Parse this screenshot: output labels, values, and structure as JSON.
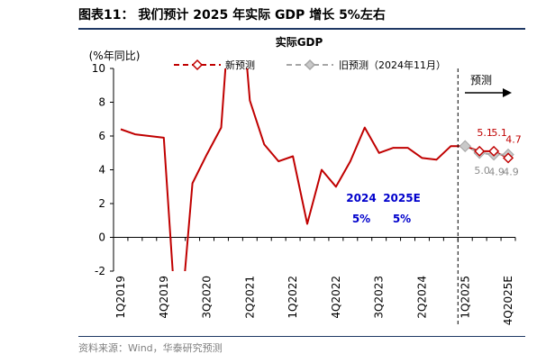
{
  "figure_title": "图表11：  我们预计 2025 年实际 GDP 增长 5%左右",
  "source": "资料来源：Wind，华泰研究预测",
  "chart_data": {
    "type": "line",
    "title": "实际GDP",
    "ylabel": "(%年同比)",
    "ylim": [
      -2,
      10
    ],
    "yticks": [
      -2,
      0,
      2,
      4,
      6,
      8,
      10
    ],
    "x_tick_labels": [
      "1Q2019",
      "4Q2019",
      "3Q2020",
      "2Q2021",
      "1Q2022",
      "4Q2022",
      "3Q2023",
      "2Q2024",
      "1Q2025",
      "4Q2025E"
    ],
    "grid": false,
    "legend_position": "top",
    "series": [
      {
        "name": "新预测",
        "color": "#c00000",
        "x": [
          "1Q2019",
          "2Q2019",
          "3Q2019",
          "4Q2019",
          "1Q2020",
          "2Q2020",
          "3Q2020",
          "4Q2020",
          "1Q2021",
          "2Q2021",
          "3Q2021",
          "4Q2021",
          "1Q2022",
          "2Q2022",
          "3Q2022",
          "4Q2022",
          "1Q2023",
          "2Q2023",
          "3Q2023",
          "4Q2023",
          "1Q2024",
          "2Q2024",
          "3Q2024",
          "4Q2024",
          "1Q2025",
          "2Q2025E",
          "3Q2025E",
          "4Q2025E"
        ],
        "values": [
          6.4,
          6.1,
          6.0,
          5.9,
          -6.8,
          3.2,
          4.9,
          6.5,
          18.3,
          8.1,
          5.5,
          4.5,
          4.8,
          0.8,
          4.0,
          3.0,
          4.5,
          6.5,
          5.0,
          5.3,
          5.3,
          4.7,
          4.6,
          5.4,
          5.4,
          5.1,
          5.1,
          4.7
        ]
      },
      {
        "name": "旧预测（2024年11月）",
        "color": "#a6a6a6",
        "x": [
          "1Q2025",
          "2Q2025E",
          "3Q2025E",
          "4Q2025E"
        ],
        "values": [
          5.4,
          5.0,
          4.9,
          4.9
        ]
      }
    ],
    "forecast_divider": {
      "after": "4Q2024",
      "label": "预测"
    },
    "data_labels": {
      "new": [
        {
          "x": "2Q2025E",
          "text": "5.1"
        },
        {
          "x": "3Q2025E",
          "text": "5.1"
        },
        {
          "x": "4Q2025E",
          "text": "4.7"
        }
      ],
      "old": [
        {
          "x": "2Q2025E",
          "text": "5.0"
        },
        {
          "x": "3Q2025E",
          "text": "4.9"
        },
        {
          "x": "4Q2025E",
          "text": "4.9"
        }
      ]
    },
    "annotations": [
      {
        "year": "2024",
        "value": "5%"
      },
      {
        "year": "2025E",
        "value": "5%"
      }
    ]
  }
}
